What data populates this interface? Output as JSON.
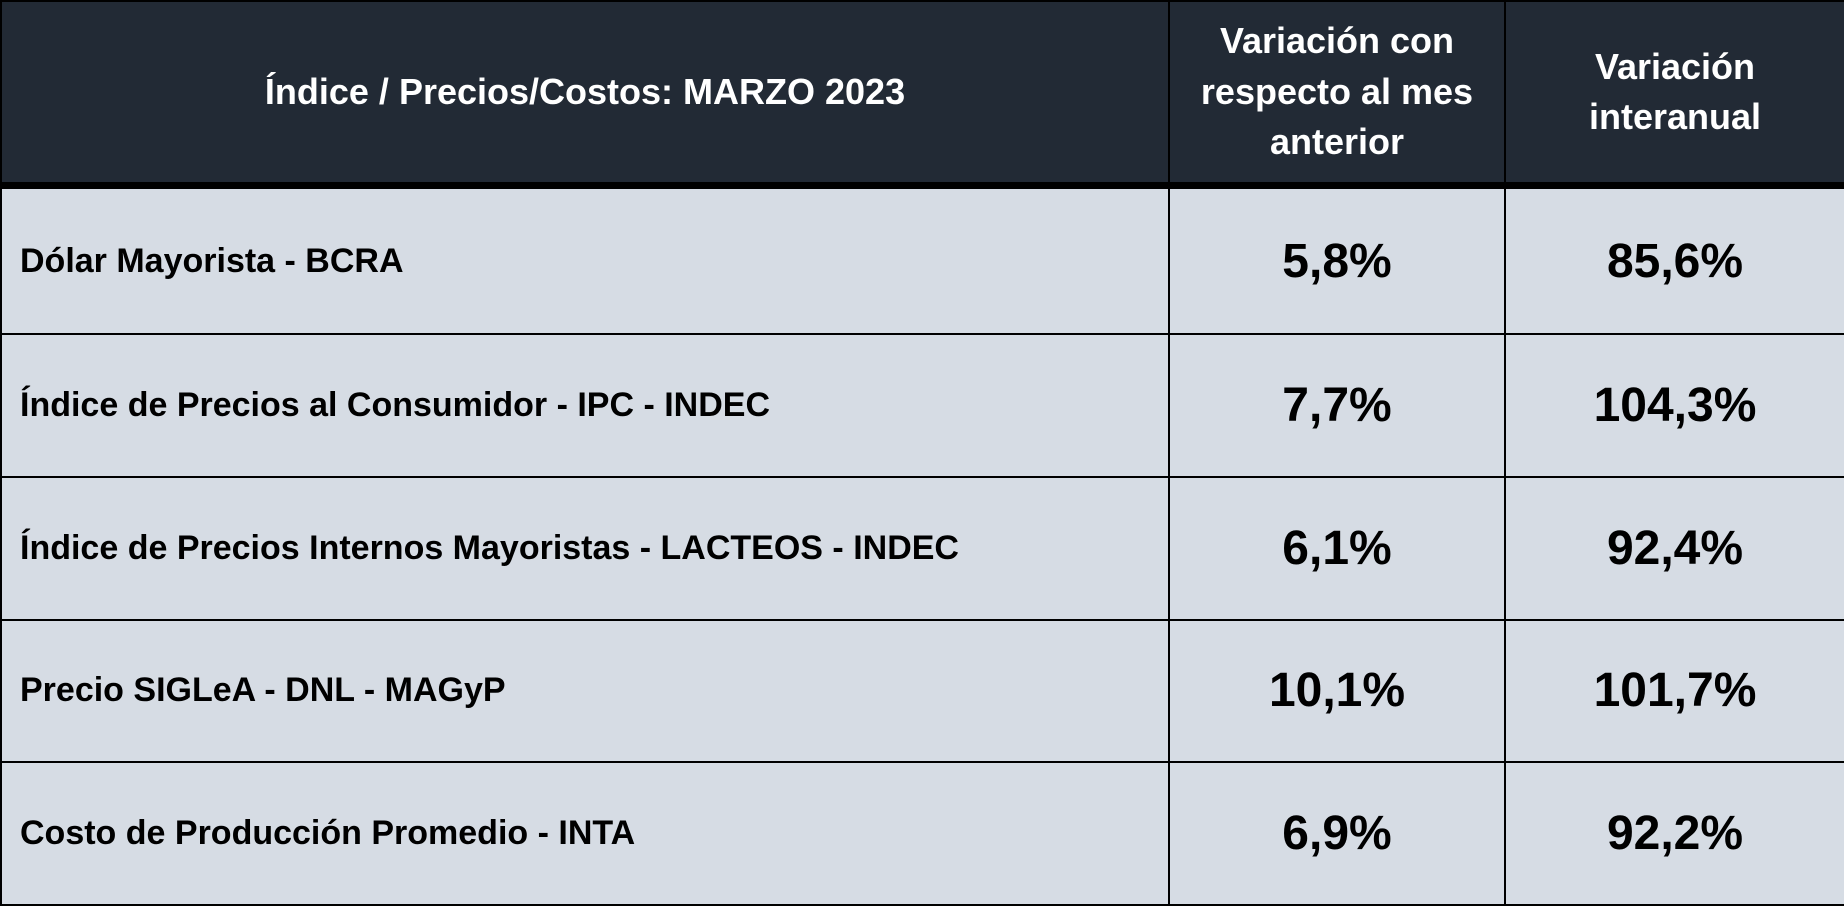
{
  "table": {
    "header": [
      "Índice / Precios/Costos: MARZO 2023",
      "Variación con respecto al mes anterior",
      "Variación interanual"
    ],
    "rows": [
      [
        "Dólar Mayorista - BCRA",
        "5,8%",
        "85,6%"
      ],
      [
        "Índice de Precios al Consumidor - IPC - INDEC",
        "7,7%",
        "104,3%"
      ],
      [
        "Índice de Precios Internos Mayoristas - LACTEOS - INDEC",
        "6,1%",
        "92,4%"
      ],
      [
        "Precio SIGLeA - DNL - MAGyP",
        "10,1%",
        "101,7%"
      ],
      [
        "Costo de Producción Promedio - INTA",
        "6,9%",
        "92,2%"
      ]
    ]
  }
}
